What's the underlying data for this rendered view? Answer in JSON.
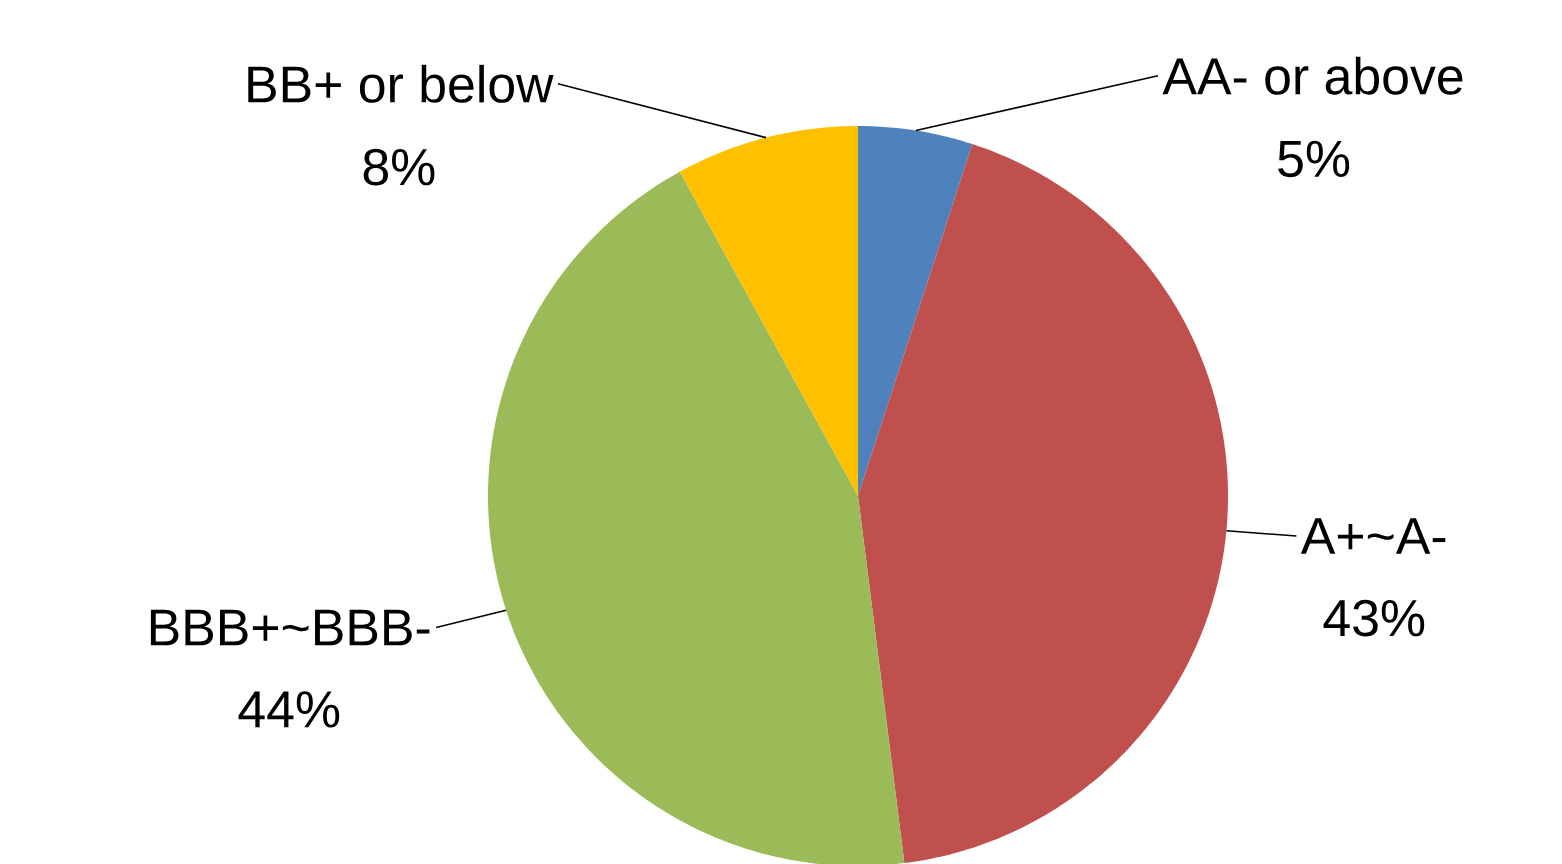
{
  "chart_data": {
    "type": "pie",
    "categories": [
      "AA- or above",
      "A+~A-",
      "BBB+~BBB-",
      "BB+ or below"
    ],
    "values": [
      5,
      43,
      44,
      8
    ],
    "value_labels": [
      "5%",
      "43%",
      "44%",
      "8%"
    ],
    "colors": [
      "#4f81bd",
      "#c0504d",
      "#9bbb59",
      "#ffc000"
    ]
  }
}
